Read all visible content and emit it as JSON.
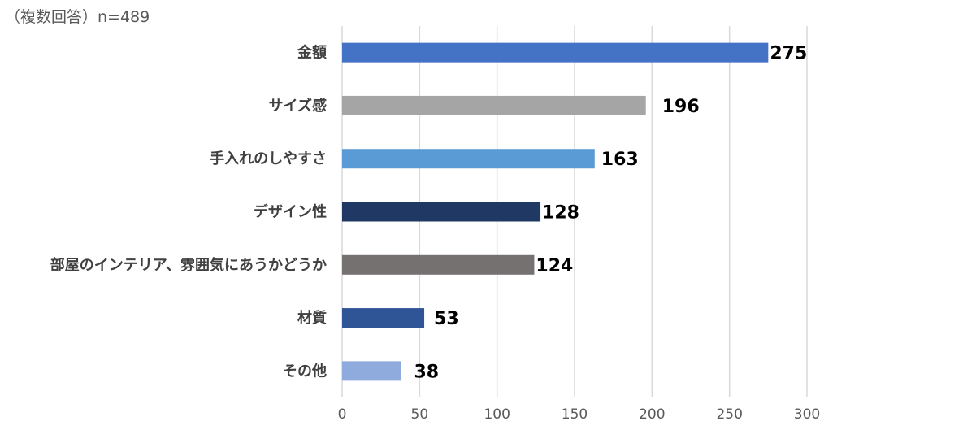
{
  "note": "（複数回答）n=489",
  "chart_data": {
    "type": "bar",
    "orientation": "horizontal",
    "categories": [
      "金額",
      "サイズ感",
      "手入れのしやすさ",
      "デザイン性",
      "部屋のインテリア、雰囲気にあうかどうか",
      "材質",
      "その他"
    ],
    "values": [
      275,
      196,
      163,
      128,
      124,
      53,
      38
    ],
    "colors": [
      "#4472c4",
      "#a5a5a5",
      "#5b9bd5",
      "#203864",
      "#767171",
      "#2f5597",
      "#8faadc"
    ],
    "xlim": [
      0,
      300
    ],
    "xticks": [
      "0",
      "50",
      "100",
      "150",
      "200",
      "250",
      "300"
    ],
    "grid": true
  }
}
